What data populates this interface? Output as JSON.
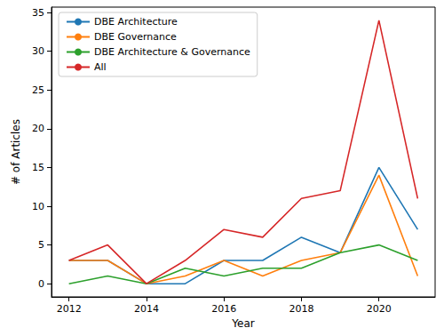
{
  "chart_data": {
    "type": "line",
    "x_label": "Year",
    "y_label": "# of Articles",
    "x": [
      2012,
      2013,
      2014,
      2015,
      2016,
      2017,
      2018,
      2019,
      2020,
      2021
    ],
    "series": [
      {
        "name": "DBE Architecture",
        "color": "#1f77b4",
        "values": [
          3,
          3,
          0,
          0,
          3,
          3,
          6,
          4,
          15,
          7
        ]
      },
      {
        "name": "DBE Governance",
        "color": "#ff7f0e",
        "values": [
          3,
          3,
          0,
          1,
          3,
          1,
          3,
          4,
          14,
          1
        ]
      },
      {
        "name": "DBE Architecture & Governance",
        "color": "#2ca02c",
        "values": [
          0,
          1,
          0,
          2,
          1,
          2,
          2,
          4,
          5,
          3
        ]
      },
      {
        "name": "All",
        "color": "#d62728",
        "values": [
          3,
          5,
          0,
          3,
          7,
          6,
          11,
          12,
          34,
          11
        ]
      }
    ],
    "xlim": [
      2011.55,
      2021.45
    ],
    "xticks": [
      2012,
      2014,
      2016,
      2018,
      2020
    ],
    "ylim": [
      -1.7,
      35.7
    ],
    "yticks": [
      0,
      5,
      10,
      15,
      20,
      25,
      30,
      35
    ],
    "grid": false,
    "legend": "upper left"
  }
}
